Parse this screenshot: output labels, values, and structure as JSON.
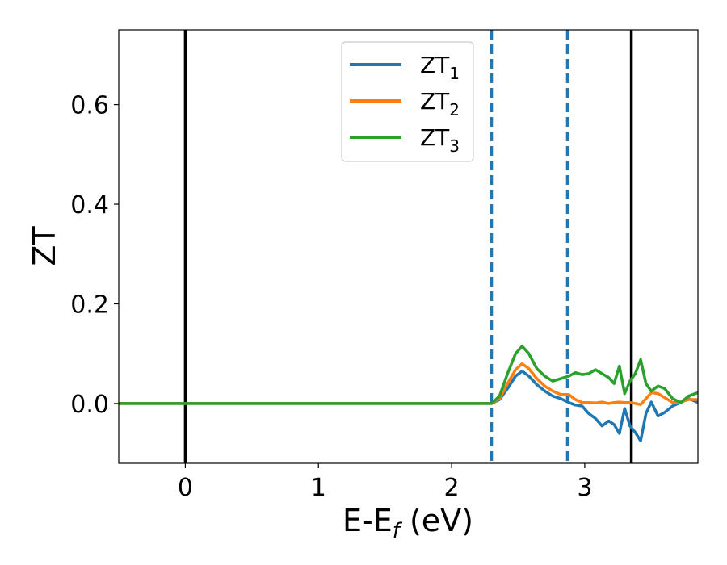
{
  "chart_data": {
    "type": "line",
    "xlabel": "E-E",
    "xlabel_sub": "f",
    "xlabel_unit": " (eV)",
    "ylabel": "ZT",
    "xlim": [
      -0.5,
      3.85
    ],
    "ylim": [
      -0.12,
      0.75
    ],
    "x_ticks": [
      0,
      1,
      2,
      3
    ],
    "x_tick_labels": [
      "0",
      "1",
      "2",
      "3"
    ],
    "y_ticks": [
      0.0,
      0.2,
      0.4,
      0.6
    ],
    "y_tick_labels": [
      "0.0",
      "0.2",
      "0.4",
      "0.6"
    ],
    "grid": false,
    "legend_position": "top-center",
    "vertical_lines": [
      {
        "x": 0.0,
        "style": "solid",
        "color": "#000000"
      },
      {
        "x": 2.3,
        "style": "dashed",
        "color": "#1f77b4"
      },
      {
        "x": 2.87,
        "style": "dashed",
        "color": "#1f77b4"
      },
      {
        "x": 3.35,
        "style": "solid",
        "color": "#000000"
      }
    ],
    "series": [
      {
        "name": "ZT",
        "name_sub": "1",
        "color": "#1f77b4",
        "x": [
          -0.5,
          2.3,
          2.36,
          2.42,
          2.48,
          2.53,
          2.58,
          2.64,
          2.7,
          2.76,
          2.82,
          2.88,
          2.93,
          2.98,
          3.03,
          3.08,
          3.13,
          3.18,
          3.22,
          3.26,
          3.3,
          3.34,
          3.38,
          3.42,
          3.46,
          3.5,
          3.55,
          3.6,
          3.66,
          3.72,
          3.78,
          3.85
        ],
        "values": [
          0.0,
          0.0,
          0.008,
          0.03,
          0.055,
          0.065,
          0.055,
          0.038,
          0.025,
          0.015,
          0.01,
          0.002,
          -0.003,
          -0.005,
          -0.02,
          -0.03,
          -0.045,
          -0.035,
          -0.042,
          -0.06,
          -0.01,
          -0.045,
          -0.058,
          -0.075,
          -0.02,
          0.003,
          -0.025,
          -0.018,
          -0.005,
          0.002,
          0.01,
          0.002
        ]
      },
      {
        "name": "ZT",
        "name_sub": "2",
        "color": "#ff7f0e",
        "x": [
          -0.5,
          2.3,
          2.36,
          2.42,
          2.48,
          2.53,
          2.58,
          2.64,
          2.7,
          2.76,
          2.82,
          2.88,
          2.93,
          2.98,
          3.03,
          3.08,
          3.13,
          3.18,
          3.22,
          3.26,
          3.3,
          3.34,
          3.38,
          3.42,
          3.46,
          3.5,
          3.55,
          3.6,
          3.66,
          3.72,
          3.78,
          3.85
        ],
        "values": [
          0.0,
          0.0,
          0.01,
          0.04,
          0.068,
          0.08,
          0.07,
          0.05,
          0.035,
          0.025,
          0.018,
          0.018,
          0.008,
          0.002,
          0.002,
          0.001,
          0.003,
          0.0,
          0.002,
          0.003,
          0.002,
          0.002,
          0.0,
          -0.002,
          0.01,
          0.022,
          0.02,
          0.012,
          0.002,
          0.003,
          0.008,
          0.008
        ]
      },
      {
        "name": "ZT",
        "name_sub": "3",
        "color": "#2ca02c",
        "x": [
          -0.5,
          2.3,
          2.36,
          2.42,
          2.48,
          2.53,
          2.58,
          2.64,
          2.7,
          2.76,
          2.82,
          2.88,
          2.93,
          2.98,
          3.03,
          3.08,
          3.13,
          3.18,
          3.22,
          3.26,
          3.3,
          3.34,
          3.38,
          3.42,
          3.46,
          3.5,
          3.55,
          3.6,
          3.66,
          3.72,
          3.78,
          3.85
        ],
        "values": [
          0.0,
          0.0,
          0.015,
          0.06,
          0.1,
          0.115,
          0.1,
          0.07,
          0.055,
          0.045,
          0.05,
          0.055,
          0.062,
          0.058,
          0.06,
          0.068,
          0.06,
          0.052,
          0.04,
          0.075,
          0.02,
          0.045,
          0.06,
          0.088,
          0.04,
          0.025,
          0.035,
          0.03,
          0.01,
          0.002,
          0.015,
          0.022
        ]
      }
    ]
  }
}
